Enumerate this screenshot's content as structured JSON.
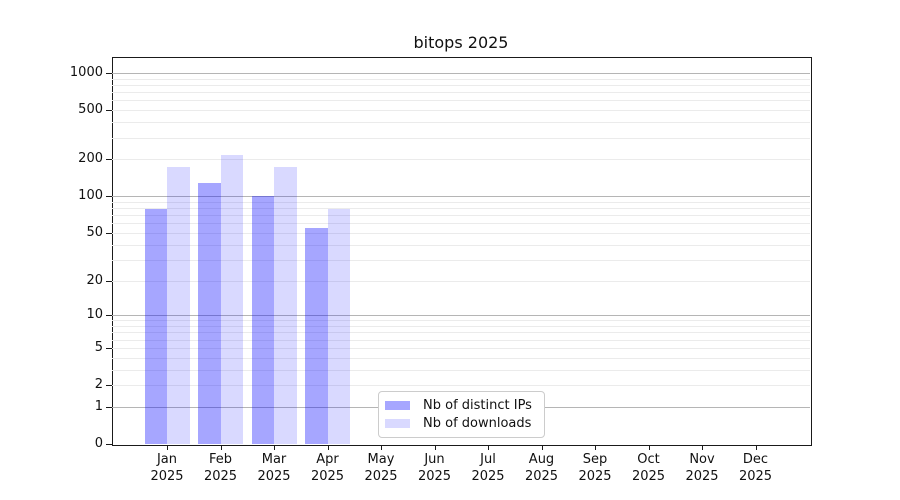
{
  "title": "bitops 2025",
  "chart_data": {
    "type": "bar",
    "title": "bitops 2025",
    "y_scale": "symlog",
    "ylim": [
      0,
      1347
    ],
    "y_ticks": [
      0,
      1,
      2,
      5,
      10,
      20,
      50,
      100,
      200,
      500,
      1000
    ],
    "grid": true,
    "legend_position": "lower-center-inside",
    "months": [
      "Jan",
      "Feb",
      "Mar",
      "Apr",
      "May",
      "Jun",
      "Jul",
      "Aug",
      "Sep",
      "Oct",
      "Nov",
      "Dec"
    ],
    "year": "2025",
    "series": [
      {
        "name": "Nb of distinct IPs",
        "color": "#0000ff",
        "alpha": 0.35,
        "values": [
          78,
          128,
          100,
          55,
          null,
          null,
          null,
          null,
          null,
          null,
          null,
          null
        ]
      },
      {
        "name": "Nb of downloads",
        "color": "#0000ff",
        "alpha": 0.15,
        "values": [
          172,
          218,
          172,
          78,
          null,
          null,
          null,
          null,
          null,
          null,
          null,
          null
        ]
      }
    ]
  }
}
